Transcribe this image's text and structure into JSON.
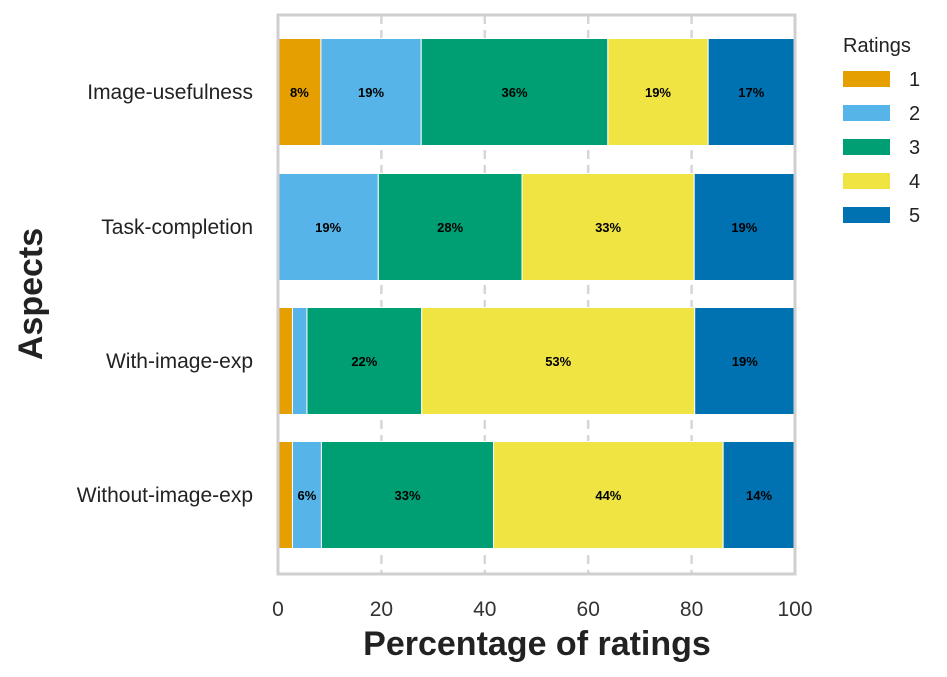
{
  "chart_data": {
    "type": "bar",
    "orientation": "horizontal",
    "stacked": true,
    "title": "",
    "xlabel": "Percentage of ratings",
    "ylabel": "Aspects",
    "xlim": [
      0,
      100
    ],
    "xticks": [
      0,
      20,
      40,
      60,
      80,
      100
    ],
    "grid": true,
    "categories": [
      "Image-usefulness",
      "Task-completion",
      "With-image-exp",
      "Without-image-exp"
    ],
    "legend": {
      "title": "Ratings",
      "position": "top-right-outside"
    },
    "series": [
      {
        "name": "1",
        "color": "#E69F00",
        "values": [
          8.3,
          0,
          2.8,
          2.8
        ],
        "labels": [
          "8%",
          "",
          "",
          ""
        ]
      },
      {
        "name": "2",
        "color": "#56B4E9",
        "values": [
          19.4,
          19.4,
          2.8,
          5.6
        ],
        "labels": [
          "19%",
          "19%",
          "",
          "6%"
        ]
      },
      {
        "name": "3",
        "color": "#009E73",
        "values": [
          36.1,
          27.8,
          22.2,
          33.3
        ],
        "labels": [
          "36%",
          "28%",
          "22%",
          "33%"
        ]
      },
      {
        "name": "4",
        "color": "#F0E442",
        "values": [
          19.4,
          33.3,
          52.8,
          44.4
        ],
        "labels": [
          "19%",
          "33%",
          "53%",
          "44%"
        ]
      },
      {
        "name": "5",
        "color": "#0072B2",
        "values": [
          16.7,
          19.4,
          19.4,
          13.9
        ],
        "labels": [
          "17%",
          "19%",
          "19%",
          "14%"
        ]
      }
    ]
  }
}
